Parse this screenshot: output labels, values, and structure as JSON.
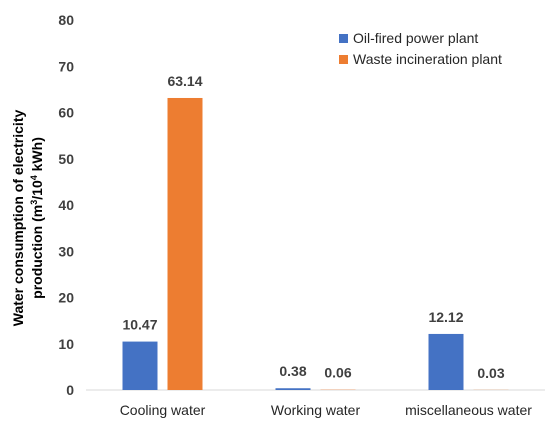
{
  "chart_data": {
    "type": "bar",
    "categories": [
      "Cooling water",
      "Working water",
      "miscellaneous water"
    ],
    "series": [
      {
        "name": "Oil-fired power plant",
        "values": [
          10.47,
          0.38,
          12.12
        ],
        "labels": [
          "10.47",
          "0.38",
          "12.12"
        ],
        "color": "#4472C4"
      },
      {
        "name": "Waste incineration plant",
        "values": [
          63.14,
          0.06,
          0.03
        ],
        "labels": [
          "63.14",
          "0.06",
          "0.03"
        ],
        "color": "#ED7D31"
      }
    ],
    "ylabel_line1": "Water consumption of electricity",
    "ylabel_line2_pre": "production  (m",
    "ylabel_sup1": "3",
    "ylabel_mid": "/10",
    "ylabel_sup2": "4",
    "ylabel_post": " kWh)",
    "ylim": [
      0,
      80
    ],
    "yticks": [
      "0",
      "10",
      "20",
      "30",
      "40",
      "50",
      "60",
      "70",
      "80"
    ],
    "grid": false,
    "legend_position": "top-right"
  }
}
